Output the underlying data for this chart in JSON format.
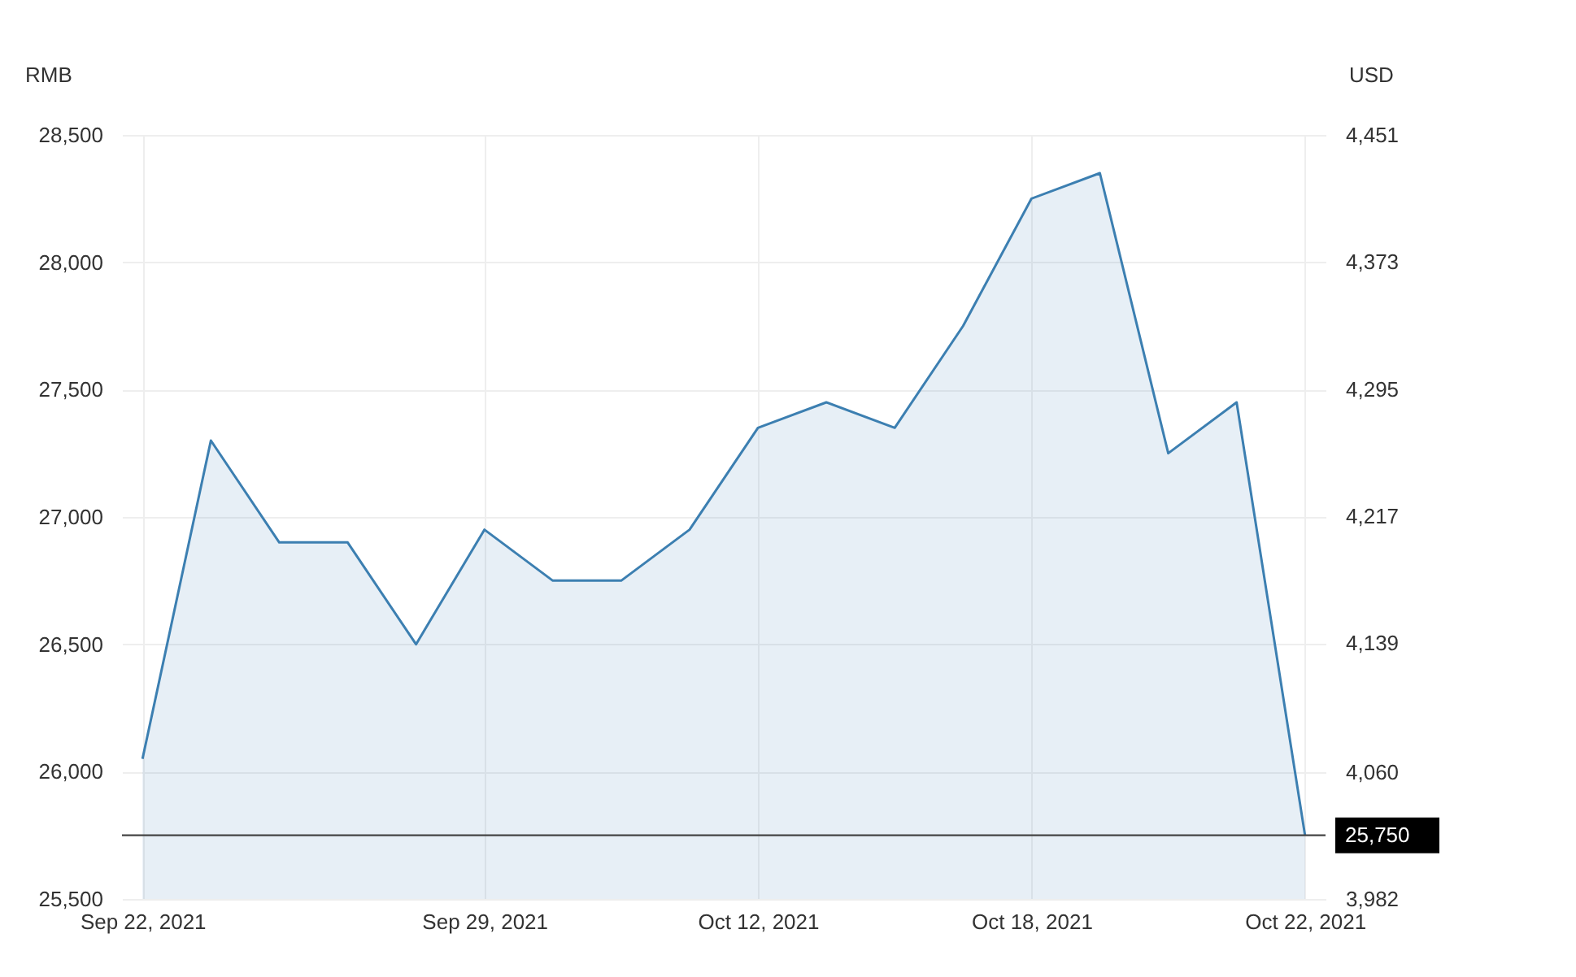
{
  "chart_data": {
    "type": "area",
    "ylabel": "RMB",
    "y2label": "USD",
    "categories": [
      "Sep 22, 2021",
      null,
      null,
      null,
      null,
      "Sep 29, 2021",
      null,
      null,
      null,
      "Oct 12, 2021",
      null,
      null,
      null,
      "Oct 18, 2021",
      null,
      null,
      null,
      "Oct 22, 2021"
    ],
    "series": [
      {
        "color": "#3c7fb1",
        "values": [
          26050,
          27300,
          26900,
          26900,
          26500,
          26950,
          26750,
          26750,
          26950,
          27350,
          27450,
          27350,
          27750,
          28250,
          28350,
          27250,
          27450,
          25750
        ]
      }
    ],
    "ylim": [
      25500,
      28500
    ],
    "yticks": [
      {
        "value": 25500,
        "label": "25,500"
      },
      {
        "value": 26000,
        "label": "26,000"
      },
      {
        "value": 26500,
        "label": "26,500"
      },
      {
        "value": 27000,
        "label": "27,000"
      },
      {
        "value": 27500,
        "label": "27,500"
      },
      {
        "value": 28000,
        "label": "28,000"
      },
      {
        "value": 28500,
        "label": "28,500"
      }
    ],
    "y2lim": [
      3982,
      4451
    ],
    "y2ticks": [
      {
        "value": 3982,
        "label": "3,982"
      },
      {
        "value": 4060,
        "label": "4,060"
      },
      {
        "value": 4139,
        "label": "4,139"
      },
      {
        "value": 4217,
        "label": "4,217"
      },
      {
        "value": 4295,
        "label": "4,295"
      },
      {
        "value": 4373,
        "label": "4,373"
      },
      {
        "value": 4451,
        "label": "4,451"
      }
    ],
    "ref_lines": [
      {
        "axis": "y",
        "value": 25750,
        "label": "25,750",
        "color": "#444444"
      }
    ],
    "grid": true,
    "legend": false
  }
}
